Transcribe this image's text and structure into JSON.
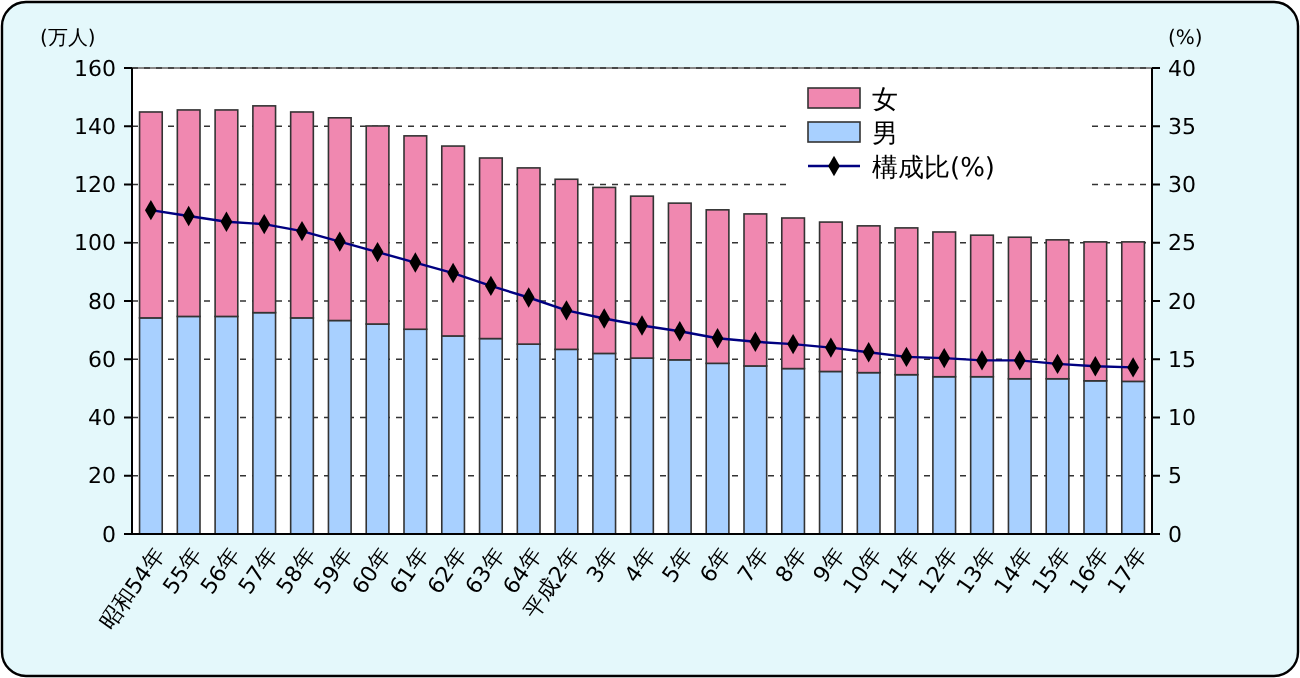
{
  "chart_data": {
    "type": "bar",
    "stacked": true,
    "ylabel": "(万人)",
    "y2label": "(%)",
    "categories": [
      "昭和54年",
      "55年",
      "56年",
      "57年",
      "58年",
      "59年",
      "60年",
      "61年",
      "62年",
      "63年",
      "64年",
      "平成2年",
      "3年",
      "4年",
      "5年",
      "6年",
      "7年",
      "8年",
      "9年",
      "10年",
      "11年",
      "12年",
      "13年",
      "14年",
      "15年",
      "16年",
      "17年"
    ],
    "series": [
      {
        "name": "男",
        "color": "#a8d0ff",
        "values": [
          74.2,
          74.7,
          74.7,
          76.0,
          74.2,
          73.3,
          72.1,
          70.3,
          68.0,
          67.1,
          65.2,
          63.4,
          62.0,
          60.4,
          59.8,
          58.6,
          57.7,
          56.8,
          55.8,
          55.4,
          54.7,
          54.0,
          54.0,
          53.3,
          53.3,
          52.6,
          52.4
        ]
      },
      {
        "name": "女",
        "color": "#f088b0",
        "values": [
          70.7,
          70.9,
          70.9,
          71.0,
          70.7,
          69.6,
          68.0,
          66.4,
          65.2,
          62.0,
          60.5,
          58.4,
          57.0,
          55.6,
          53.8,
          52.7,
          52.2,
          51.7,
          51.3,
          50.4,
          50.4,
          49.7,
          48.6,
          48.6,
          47.7,
          47.7,
          47.9
        ]
      },
      {
        "name": "構成比(%)",
        "type": "line",
        "axis": "y2",
        "color": "#000080",
        "marker": "diamond",
        "values": [
          27.8,
          27.3,
          26.8,
          26.6,
          26.0,
          25.1,
          24.2,
          23.3,
          22.4,
          21.3,
          20.3,
          19.2,
          18.5,
          17.9,
          17.4,
          16.8,
          16.5,
          16.3,
          16.0,
          15.6,
          15.2,
          15.1,
          14.9,
          14.9,
          14.6,
          14.4,
          14.3
        ]
      }
    ],
    "ylim": [
      0,
      160
    ],
    "yticks": [
      0,
      20,
      40,
      60,
      80,
      100,
      120,
      140,
      160
    ],
    "y2lim": [
      0,
      40
    ],
    "y2ticks": [
      0,
      5,
      10,
      15,
      20,
      25,
      30,
      35,
      40
    ],
    "grid": "y",
    "legend": "top right"
  }
}
